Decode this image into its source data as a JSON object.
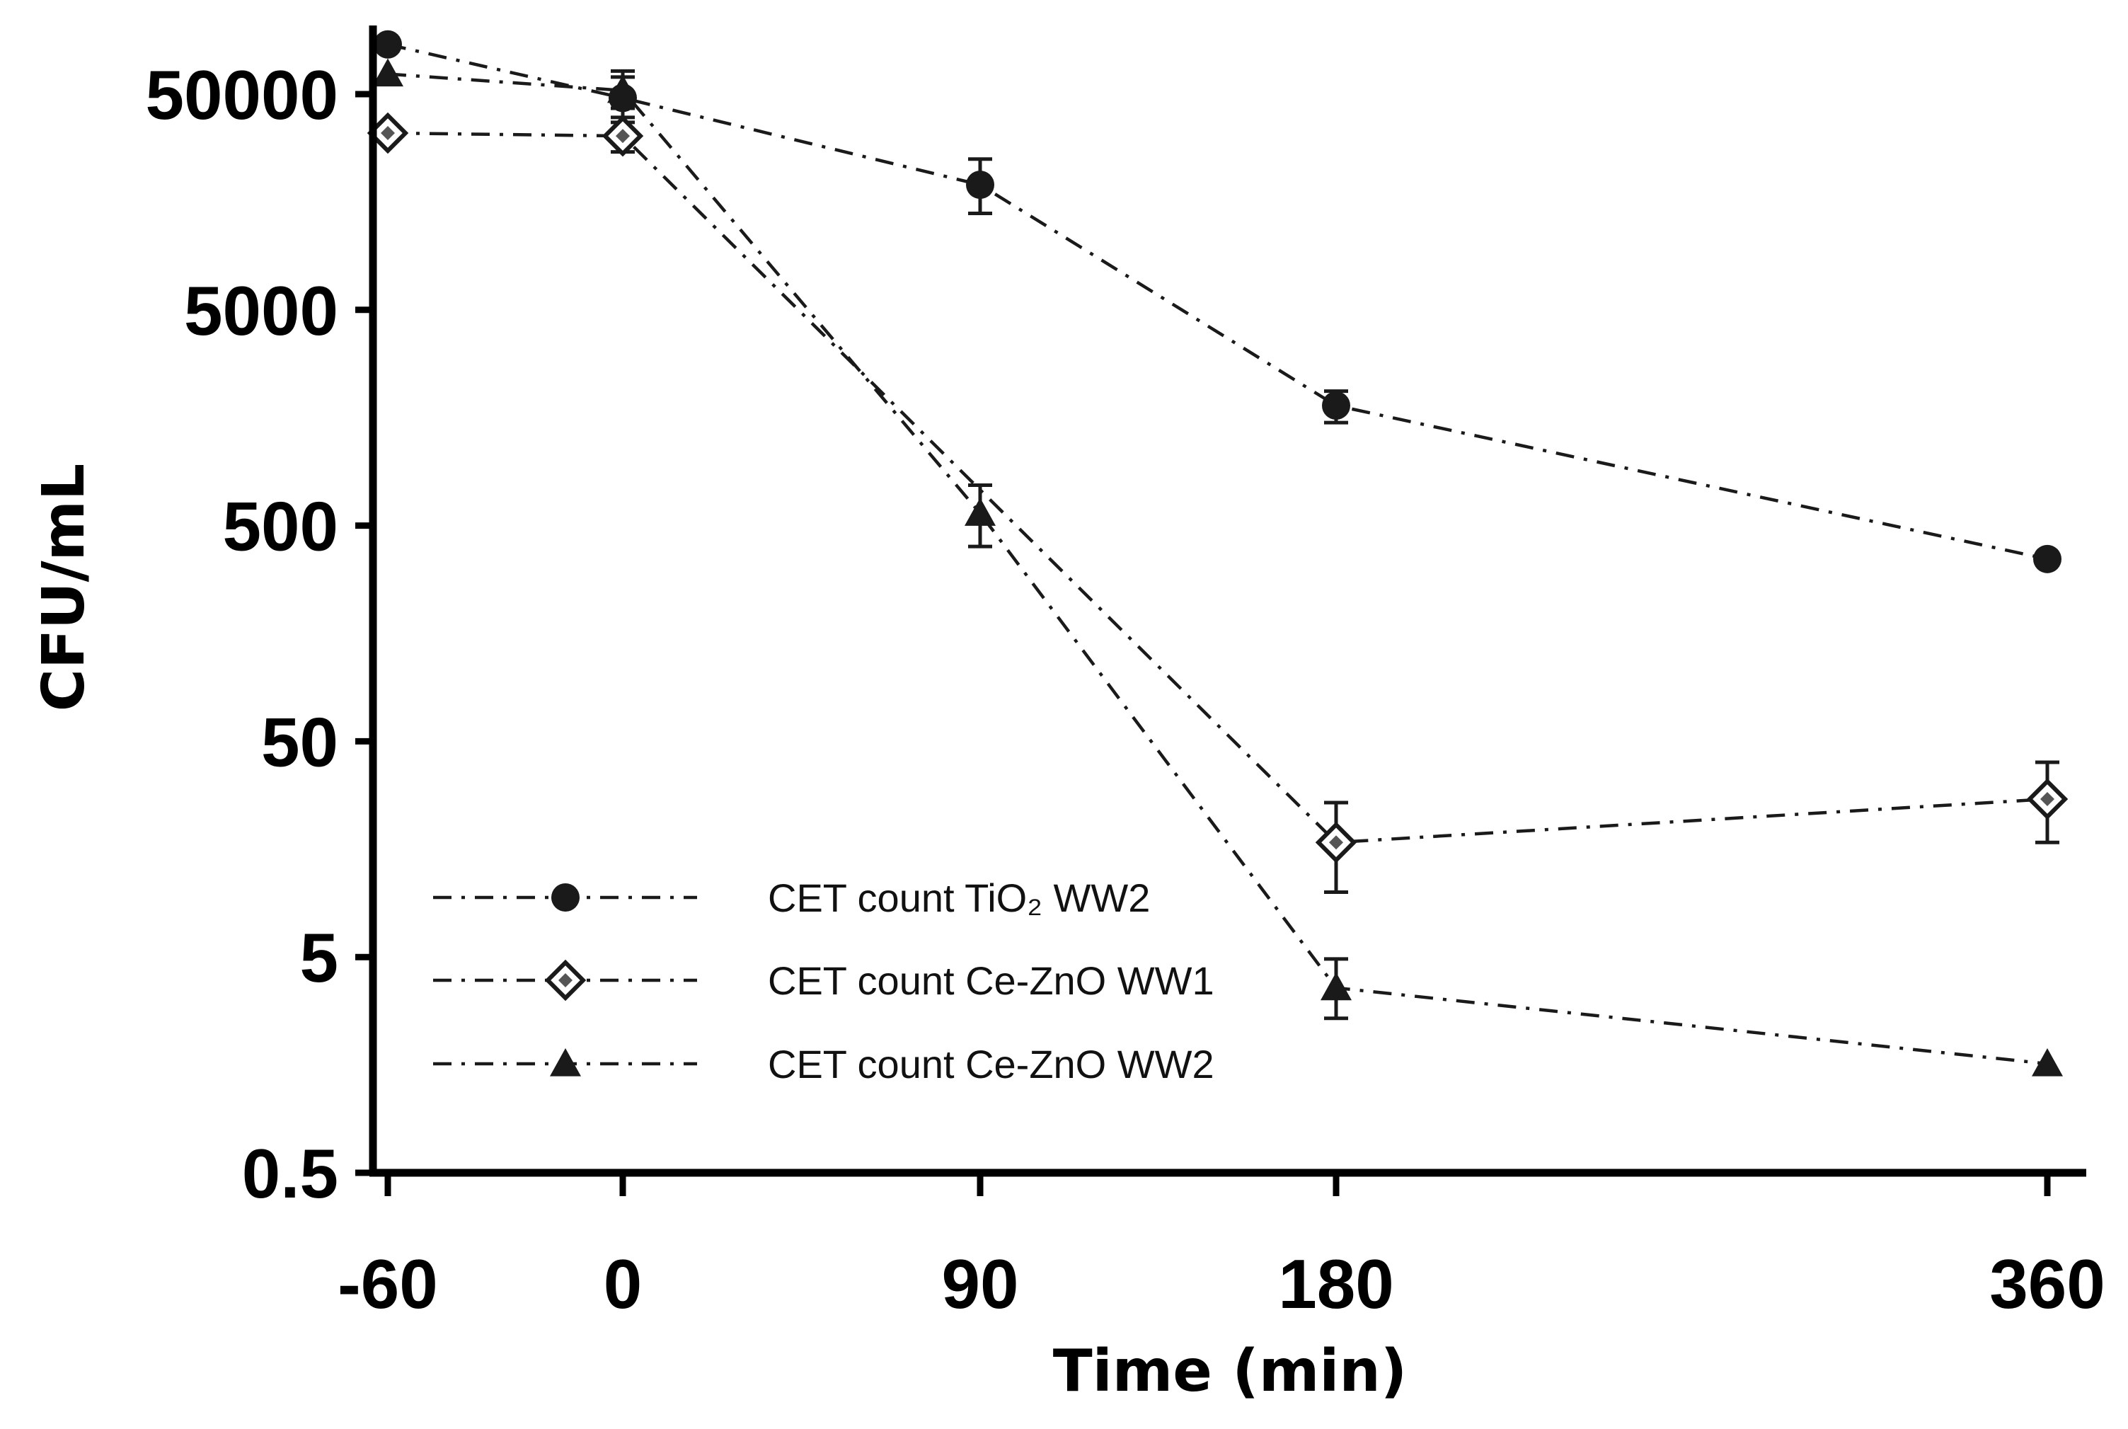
{
  "chart_data": {
    "type": "line",
    "title": "",
    "xlabel": "Time (min)",
    "ylabel": "CFU/mL",
    "yscale": "log",
    "ylim": [
      0.5,
      50000
    ],
    "x_ticks": [
      -60,
      0,
      90,
      180,
      360
    ],
    "x_tick_labels": [
      "-60",
      "0",
      "90",
      "180",
      "360"
    ],
    "y_ticks": [
      0.5,
      5,
      50,
      500,
      5000,
      50000
    ],
    "y_tick_labels": [
      "0.5",
      "5",
      "50",
      "500",
      "5000",
      "50000"
    ],
    "grid": false,
    "legend_position": "bottom-left",
    "series": [
      {
        "name": "CET count TiO₂ WW2",
        "marker": "circle",
        "x": [
          -60,
          0,
          90,
          180,
          360
        ],
        "y": [
          85000,
          48000,
          19000,
          1800,
          350
        ],
        "err_low": [
          null,
          9000,
          5000,
          300,
          null
        ],
        "err_high": [
          null,
          12000,
          6000,
          300,
          null
        ]
      },
      {
        "name": "CET count Ce-ZnO WW1",
        "marker": "diamond",
        "x": [
          -60,
          0,
          90,
          180,
          360
        ],
        "y": [
          33000,
          32000,
          null,
          17,
          27
        ],
        "err_low": [
          null,
          5000,
          null,
          7,
          10
        ],
        "err_high": [
          null,
          5000,
          null,
          9,
          13
        ]
      },
      {
        "name": "CET count Ce-ZnO WW2",
        "marker": "triangle",
        "x": [
          -60,
          0,
          90,
          180,
          360
        ],
        "y": [
          62000,
          52000,
          570,
          3.6,
          1.6
        ],
        "err_low": [
          null,
          9000,
          170,
          1.0,
          null
        ],
        "err_high": [
          null,
          12000,
          200,
          1.3,
          null
        ]
      }
    ]
  }
}
